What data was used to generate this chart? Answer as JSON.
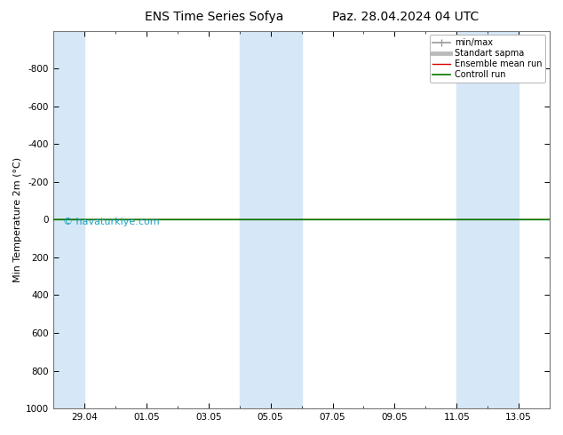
{
  "title": "ENS Time Series Sofya",
  "title2": "Paz. 28.04.2024 04 UTC",
  "ylabel": "Min Temperature 2m (°C)",
  "ylim_bottom": 1000,
  "ylim_top": -1000,
  "yticks": [
    -800,
    -600,
    -400,
    -200,
    0,
    200,
    400,
    600,
    800,
    1000
  ],
  "background_color": "#ffffff",
  "plot_bg_color": "#ffffff",
  "shaded_color": "#d6e8f7",
  "grid_color": "#cccccc",
  "watermark": "© havaturkiye.com",
  "watermark_color": "#0099bb",
  "legend_entries": [
    "min/max",
    "Standart sapma",
    "Ensemble mean run",
    "Controll run"
  ],
  "legend_colors_line": [
    "#999999",
    "#bbbbbb",
    "#dd0000",
    "#007700"
  ],
  "x_ticks": [
    "29.04",
    "01.05",
    "03.05",
    "05.05",
    "07.05",
    "09.05",
    "11.05",
    "13.05"
  ],
  "shaded_intervals": [
    [
      0,
      1
    ],
    [
      6,
      8
    ],
    [
      13,
      15
    ]
  ],
  "total_days": 16,
  "x_tick_offsets": [
    1,
    3,
    5,
    7,
    9,
    11,
    13,
    15
  ]
}
